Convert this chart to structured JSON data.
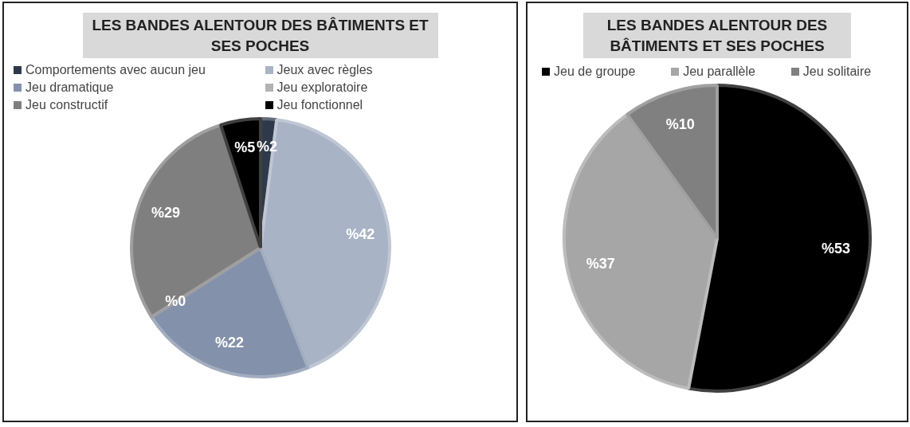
{
  "chart_data": [
    {
      "type": "pie",
      "title": "LES BANDES ALENTOUR DES BÂTIMENTS ET SES POCHES",
      "legend": "top",
      "categories": [
        "Comportements avec aucun jeu",
        "Jeux avec règles",
        "Jeu dramatique",
        "Jeu exploratoire",
        "Jeu constructif",
        "Jeu fonctionnel"
      ],
      "values": [
        2,
        42,
        22,
        0,
        29,
        5
      ],
      "value_labels": [
        "%2",
        "%42",
        "%22",
        "%0",
        "%29",
        "%5"
      ],
      "colors": [
        "#2e3a4b",
        "#a9b3c6",
        "#8391ab",
        "#b3b3b3",
        "#7f7f7f",
        "#000000"
      ]
    },
    {
      "type": "pie",
      "title": "LES BANDES ALENTOUR DES BÂTIMENTS ET SES POCHES",
      "legend": "top",
      "categories": [
        "Jeu de groupe",
        "Jeu parallèle",
        "Jeu solitaire"
      ],
      "values": [
        53,
        37,
        10
      ],
      "value_labels": [
        "%53",
        "%37",
        "%10"
      ],
      "colors": [
        "#000000",
        "#a6a6a6",
        "#808080"
      ]
    }
  ]
}
